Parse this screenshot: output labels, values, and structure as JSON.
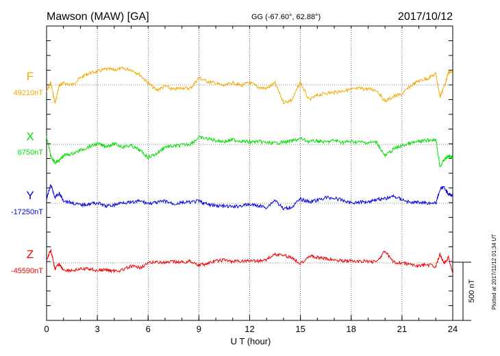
{
  "header": {
    "station": "Mawson (MAW)  [GA]",
    "coords": "GG (-67.60°,  62.88°)",
    "date": "2017/10/12"
  },
  "side_note": "Plotted at 2017/11/12 01:34  UT",
  "scale_bar_label": "500 nT",
  "colors": {
    "F": "#f2a900",
    "X": "#00dd00",
    "Y": "#0000dd",
    "Z": "#ee0000"
  },
  "chart_data": {
    "type": "line",
    "xlabel": "U T (hour)",
    "xlim": [
      0,
      24
    ],
    "x_ticks": [
      0,
      3,
      6,
      9,
      12,
      15,
      18,
      21,
      24
    ],
    "x_tick_labels": [
      "0",
      "3",
      "6",
      "9",
      "12",
      "15",
      "18",
      "21",
      "24"
    ],
    "scale_bar_nT": 500,
    "grid": true,
    "x": [
      0,
      0.25,
      0.5,
      0.75,
      1,
      1.5,
      2,
      2.5,
      3,
      3.5,
      4,
      4.5,
      5,
      5.5,
      6,
      6.5,
      7,
      7.5,
      8,
      8.5,
      9,
      9.5,
      10,
      10.5,
      11,
      11.5,
      12,
      12.5,
      13,
      13.5,
      14,
      14.5,
      15,
      15.5,
      16,
      16.5,
      17,
      17.5,
      18,
      18.5,
      19,
      19.5,
      20,
      20.5,
      21,
      21.5,
      22,
      22.5,
      23,
      23.25,
      23.5,
      23.75,
      24
    ],
    "series": [
      {
        "name": "F",
        "baseline_label": "49210nT",
        "baseline": 49210,
        "values": [
          49150,
          49230,
          49050,
          49205,
          49225,
          49210,
          49270,
          49310,
          49325,
          49345,
          49340,
          49350,
          49340,
          49300,
          49225,
          49165,
          49200,
          49170,
          49185,
          49180,
          49270,
          49240,
          49225,
          49200,
          49230,
          49205,
          49230,
          49190,
          49180,
          49225,
          49060,
          49080,
          49235,
          49080,
          49120,
          49140,
          49145,
          49160,
          49170,
          49180,
          49175,
          49165,
          49070,
          49110,
          49130,
          49200,
          49245,
          49265,
          49305,
          49110,
          49200,
          49315,
          49320
        ]
      },
      {
        "name": "X",
        "baseline_label": "6750nT",
        "baseline": 6750,
        "values": [
          6815,
          6650,
          6595,
          6610,
          6655,
          6670,
          6700,
          6730,
          6755,
          6735,
          6755,
          6730,
          6740,
          6700,
          6640,
          6670,
          6730,
          6735,
          6745,
          6755,
          6810,
          6800,
          6785,
          6775,
          6790,
          6780,
          6770,
          6775,
          6765,
          6760,
          6770,
          6780,
          6800,
          6775,
          6780,
          6770,
          6785,
          6770,
          6775,
          6770,
          6765,
          6770,
          6650,
          6710,
          6740,
          6760,
          6775,
          6785,
          6795,
          6560,
          6620,
          6650,
          6640
        ]
      },
      {
        "name": "Y",
        "baseline_label": "-17250nT",
        "baseline": -17250,
        "values": [
          -17215,
          -17090,
          -17200,
          -17165,
          -17225,
          -17245,
          -17265,
          -17255,
          -17245,
          -17275,
          -17265,
          -17240,
          -17245,
          -17230,
          -17250,
          -17245,
          -17230,
          -17255,
          -17245,
          -17240,
          -17230,
          -17260,
          -17270,
          -17275,
          -17280,
          -17270,
          -17260,
          -17270,
          -17285,
          -17220,
          -17300,
          -17280,
          -17215,
          -17235,
          -17225,
          -17200,
          -17205,
          -17225,
          -17245,
          -17240,
          -17235,
          -17215,
          -17210,
          -17190,
          -17215,
          -17245,
          -17240,
          -17245,
          -17250,
          -17130,
          -17110,
          -17175,
          -17180
        ]
      },
      {
        "name": "Z",
        "baseline_label": "-45590nT",
        "baseline": -45590,
        "values": [
          -45560,
          -45480,
          -45640,
          -45600,
          -45650,
          -45655,
          -45645,
          -45640,
          -45655,
          -45650,
          -45660,
          -45650,
          -45620,
          -45630,
          -45595,
          -45580,
          -45590,
          -45580,
          -45585,
          -45575,
          -45610,
          -45595,
          -45575,
          -45565,
          -45580,
          -45575,
          -45570,
          -45575,
          -45560,
          -45515,
          -45525,
          -45545,
          -45595,
          -45530,
          -45545,
          -45555,
          -45565,
          -45570,
          -45575,
          -45580,
          -45575,
          -45580,
          -45490,
          -45585,
          -45590,
          -45605,
          -45615,
          -45605,
          -45620,
          -45520,
          -45590,
          -45540,
          -45680
        ]
      }
    ]
  }
}
